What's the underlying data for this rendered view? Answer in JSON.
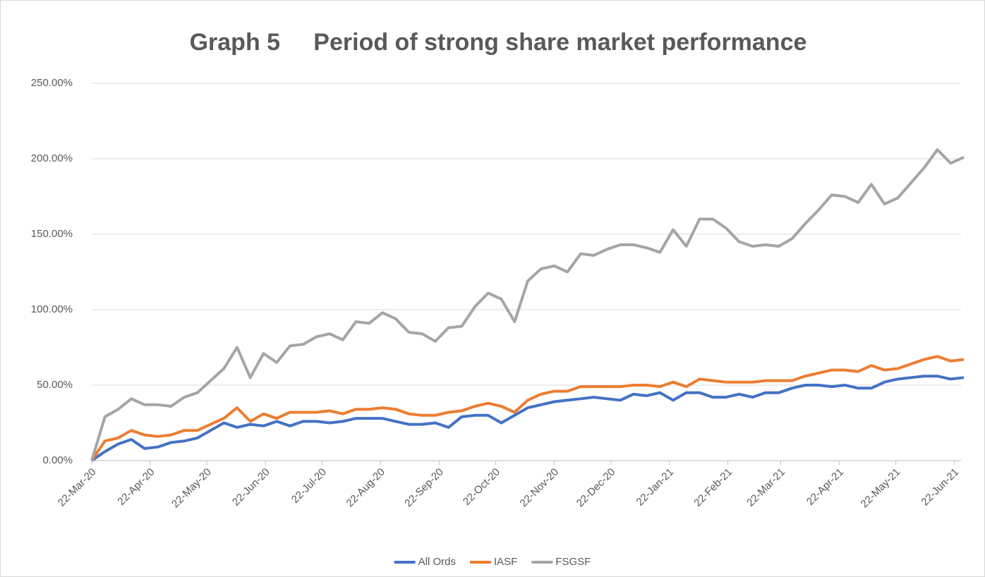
{
  "chart_data": {
    "type": "line",
    "title": "Graph 5     Period of strong share market performance",
    "x": [
      "22-Mar-20",
      "29-Mar-20",
      "5-Apr-20",
      "12-Apr-20",
      "19-Apr-20",
      "26-Apr-20",
      "3-May-20",
      "10-May-20",
      "17-May-20",
      "24-May-20",
      "31-May-20",
      "7-Jun-20",
      "14-Jun-20",
      "21-Jun-20",
      "28-Jun-20",
      "5-Jul-20",
      "12-Jul-20",
      "19-Jul-20",
      "26-Jul-20",
      "2-Aug-20",
      "9-Aug-20",
      "16-Aug-20",
      "23-Aug-20",
      "30-Aug-20",
      "6-Sep-20",
      "13-Sep-20",
      "20-Sep-20",
      "27-Sep-20",
      "4-Oct-20",
      "11-Oct-20",
      "18-Oct-20",
      "25-Oct-20",
      "1-Nov-20",
      "8-Nov-20",
      "15-Nov-20",
      "22-Nov-20",
      "29-Nov-20",
      "6-Dec-20",
      "13-Dec-20",
      "20-Dec-20",
      "27-Dec-20",
      "3-Jan-21",
      "10-Jan-21",
      "17-Jan-21",
      "24-Jan-21",
      "31-Jan-21",
      "7-Feb-21",
      "14-Feb-21",
      "21-Feb-21",
      "28-Feb-21",
      "7-Mar-21",
      "14-Mar-21",
      "21-Mar-21",
      "28-Mar-21",
      "4-Apr-21",
      "11-Apr-21",
      "18-Apr-21",
      "25-Apr-21",
      "2-May-21",
      "9-May-21",
      "16-May-21",
      "23-May-21",
      "30-May-21",
      "6-Jun-21",
      "13-Jun-21",
      "20-Jun-21",
      "27-Jun-21"
    ],
    "xlim": [
      "22-Mar-20",
      "27-Jun-21"
    ],
    "xticks": [
      "22-Mar-20",
      "22-Apr-20",
      "22-May-20",
      "22-Jun-20",
      "22-Jul-20",
      "22-Aug-20",
      "22-Sep-20",
      "22-Oct-20",
      "22-Nov-20",
      "22-Dec-20",
      "22-Jan-21",
      "22-Feb-21",
      "22-Mar-21",
      "22-Apr-21",
      "22-May-21",
      "22-Jun-21"
    ],
    "ylim": [
      0,
      250
    ],
    "yticks": [
      {
        "value": 0,
        "label": "0.00%"
      },
      {
        "value": 50,
        "label": "50.00%"
      },
      {
        "value": 100,
        "label": "100.00%"
      },
      {
        "value": 150,
        "label": "150.00%"
      },
      {
        "value": 200,
        "label": "200.00%"
      },
      {
        "value": 250,
        "label": "250.00%"
      }
    ],
    "grid": true,
    "legend": "bottom",
    "series": [
      {
        "name": "All Ords",
        "color": "#4472c4",
        "values": [
          0,
          6,
          11,
          14,
          8,
          9,
          12,
          13,
          15,
          20,
          25,
          22,
          24,
          23,
          26,
          23,
          26,
          26,
          25,
          26,
          28,
          28,
          28,
          26,
          24,
          24,
          25,
          22,
          29,
          30,
          30,
          25,
          30,
          35,
          37,
          39,
          40,
          41,
          42,
          41,
          40,
          44,
          43,
          45,
          40,
          45,
          45,
          42,
          42,
          44,
          42,
          45,
          45,
          48,
          50,
          50,
          49,
          50,
          48,
          48,
          52,
          54,
          55,
          56,
          56,
          54,
          55
        ]
      },
      {
        "name": "IASF",
        "color": "#ed7d31",
        "values": [
          0,
          13,
          15,
          20,
          17,
          16,
          17,
          20,
          20,
          24,
          28,
          35,
          26,
          31,
          28,
          32,
          32,
          32,
          33,
          31,
          34,
          34,
          35,
          34,
          31,
          30,
          30,
          32,
          33,
          36,
          38,
          36,
          32,
          40,
          44,
          46,
          46,
          49,
          49,
          49,
          49,
          50,
          50,
          49,
          52,
          49,
          54,
          53,
          52,
          52,
          52,
          53,
          53,
          53,
          56,
          58,
          60,
          60,
          59,
          63,
          60,
          61,
          64,
          67,
          69,
          66,
          67
        ]
      },
      {
        "name": "FSGSF",
        "color": "#a5a5a5",
        "values": [
          0,
          29,
          34,
          41,
          37,
          37,
          36,
          42,
          45,
          53,
          61,
          75,
          55,
          71,
          65,
          76,
          77,
          82,
          84,
          80,
          92,
          91,
          98,
          94,
          85,
          84,
          79,
          88,
          89,
          102,
          111,
          107,
          92,
          119,
          127,
          129,
          125,
          137,
          136,
          140,
          143,
          143,
          141,
          138,
          153,
          142,
          160,
          160,
          154,
          145,
          142,
          143,
          142,
          147,
          157,
          166,
          176,
          175,
          171,
          183,
          170,
          174,
          184,
          194,
          206,
          197,
          201
        ]
      }
    ]
  }
}
